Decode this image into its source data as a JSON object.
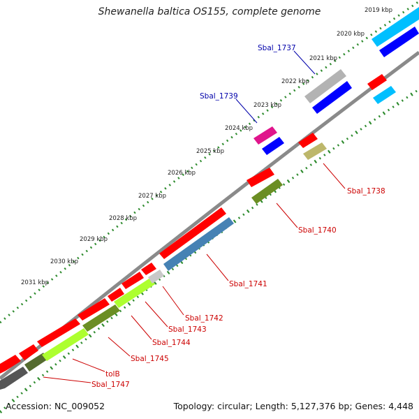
{
  "title": "Shewanella baltica OS155, complete genome",
  "footer": {
    "accession": "Accession: NC_009052",
    "summary": "Topology: circular; Length: 5,127,376 bp; Genes: 4,448"
  },
  "colors": {
    "backbone": "#7a7a7a",
    "tick_dots": "#2e8b2e",
    "label_red": "#cc0000",
    "label_blue": "#0000aa"
  },
  "ticks": [
    "2019 kbp",
    "2020 kbp",
    "2021 kbp",
    "2022 kbp",
    "2023 kbp",
    "2024 kbp",
    "2025 kbp",
    "2026 kbp",
    "2027 kbp",
    "2028 kbp",
    "2029 kbp",
    "2030 kbp",
    "2031 kbp"
  ],
  "genes": [
    {
      "id": "sbal_1737",
      "label": "Sbal_1737",
      "color": "#0000aa"
    },
    {
      "id": "sbal_1738",
      "label": "Sbal_1738",
      "color": "#cc0000"
    },
    {
      "id": "sbal_1739",
      "label": "Sbal_1739",
      "color": "#0000aa"
    },
    {
      "id": "sbal_1740",
      "label": "Sbal_1740",
      "color": "#cc0000"
    },
    {
      "id": "sbal_1741",
      "label": "Sbal_1741",
      "color": "#cc0000"
    },
    {
      "id": "sbal_1742",
      "label": "Sbal_1742",
      "color": "#cc0000"
    },
    {
      "id": "sbal_1743",
      "label": "Sbal_1743",
      "color": "#cc0000"
    },
    {
      "id": "sbal_1744",
      "label": "Sbal_1744",
      "color": "#cc0000"
    },
    {
      "id": "sbal_1745",
      "label": "Sbal_1745",
      "color": "#cc0000"
    },
    {
      "id": "tolb",
      "label": "tolB",
      "color": "#cc0000"
    },
    {
      "id": "sbal_1747",
      "label": "Sbal_1747",
      "color": "#cc0000"
    }
  ]
}
